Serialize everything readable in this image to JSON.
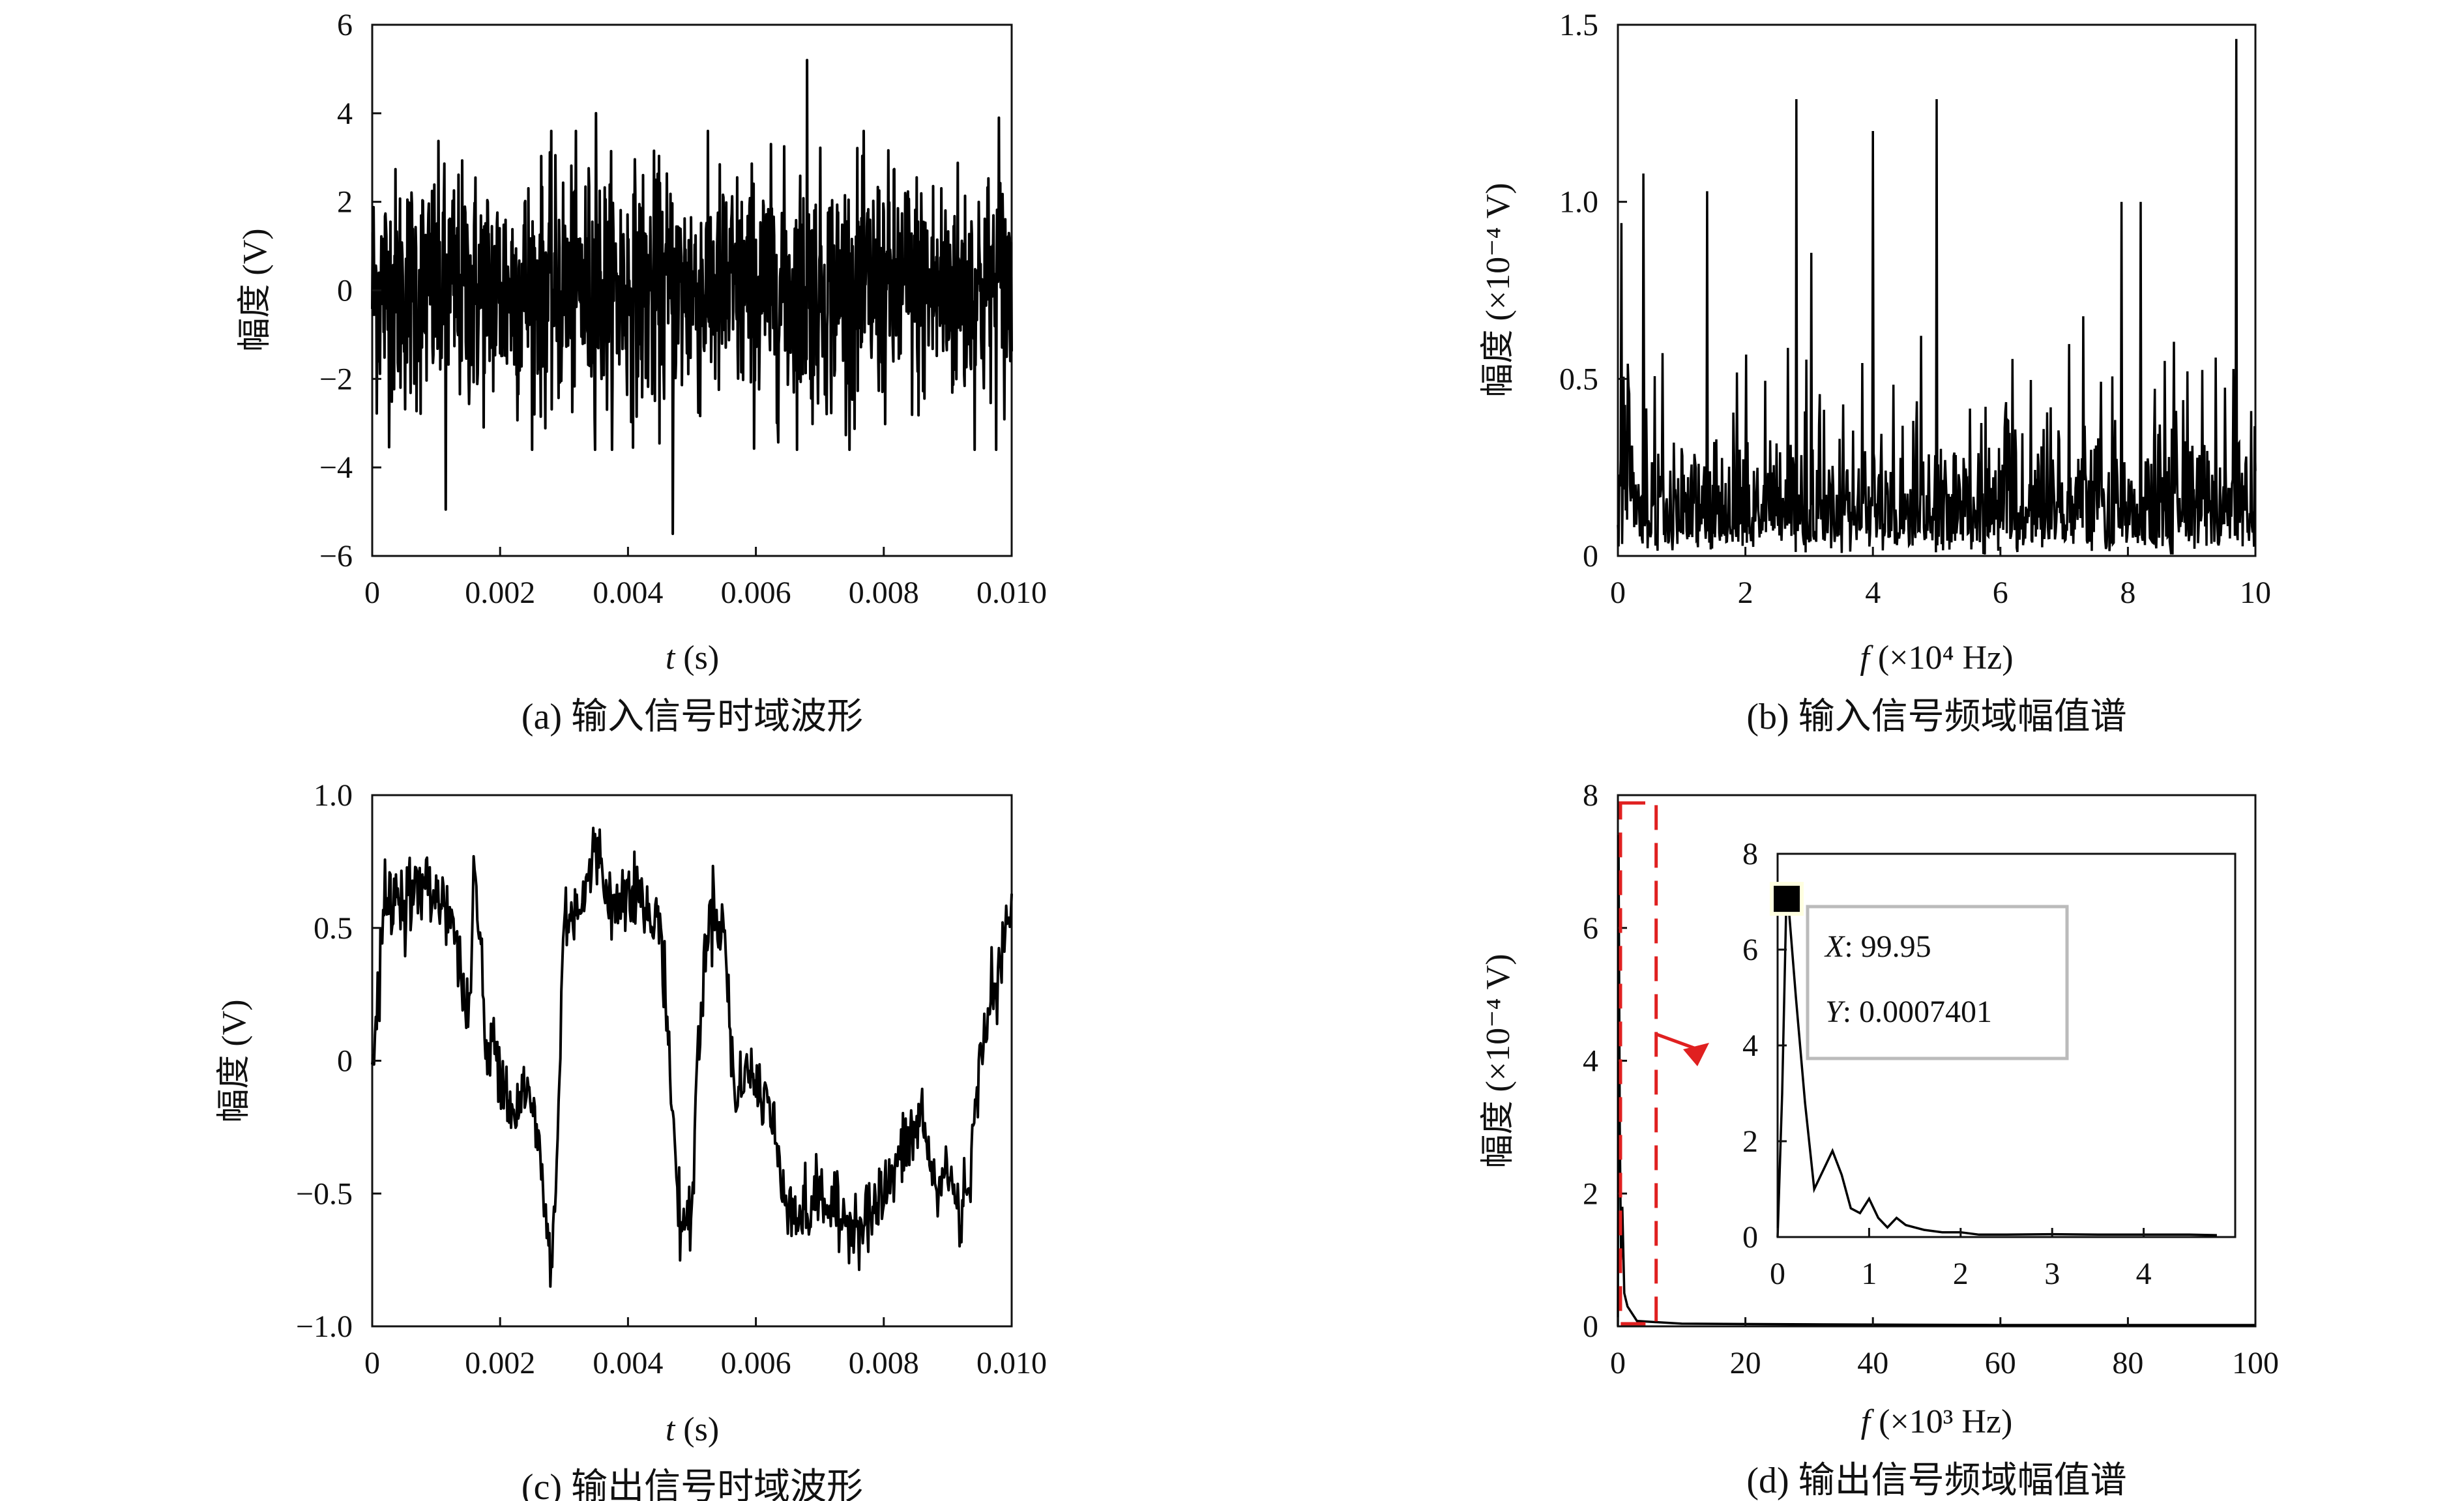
{
  "chart_data": [
    {
      "id": "a",
      "type": "line",
      "caption": "(a) 输入信号时域波形",
      "xlabel_italic": "t",
      "xlabel_unit": " (s)",
      "ylabel": "幅度 (V)",
      "xlim": [
        0,
        0.01
      ],
      "ylim": [
        -6,
        6
      ],
      "xticks": [
        0,
        0.002,
        0.004,
        0.006,
        0.008,
        0.01
      ],
      "xtick_labels": [
        "0",
        "0.002",
        "0.004",
        "0.006",
        "0.008",
        "0.010"
      ],
      "yticks": [
        -6,
        -4,
        -2,
        0,
        2,
        4,
        6
      ],
      "ytick_labels": [
        "−6",
        "−4",
        "−2",
        "0",
        "2",
        "4",
        "6"
      ],
      "series": [
        {
          "values_description_hint": "random noise",
          "amplitude_range": [
            -5.5,
            5.2
          ]
        }
      ]
    },
    {
      "id": "b",
      "type": "line",
      "caption": "(b) 输入信号频域幅值谱",
      "xlabel_italic": "f",
      "xlabel_unit": " (×10⁴ Hz)",
      "ylabel": "幅度 (×10⁻⁴ V)",
      "xlim": [
        0,
        10
      ],
      "ylim": [
        0,
        1.5
      ],
      "xticks": [
        0,
        2,
        4,
        6,
        8,
        10
      ],
      "xtick_labels": [
        "0",
        "2",
        "4",
        "6",
        "8",
        "10"
      ],
      "yticks": [
        0,
        0.5,
        1.0,
        1.5
      ],
      "ytick_labels": [
        "0",
        "0.5",
        "1.0",
        "1.5"
      ],
      "peaks": [
        [
          0.06,
          0.94
        ],
        [
          0.4,
          1.08
        ],
        [
          1.4,
          1.03
        ],
        [
          2.8,
          1.29
        ],
        [
          4.0,
          1.2
        ],
        [
          5.0,
          1.29
        ],
        [
          7.9,
          1.0
        ],
        [
          8.2,
          1.0
        ],
        [
          9.7,
          1.46
        ]
      ]
    },
    {
      "id": "c",
      "type": "line",
      "caption": "(c) 输出信号时域波形",
      "xlabel_italic": "t",
      "xlabel_unit": " (s)",
      "ylabel": "幅度 (V)",
      "xlim": [
        0,
        0.01
      ],
      "ylim": [
        -1,
        1
      ],
      "xticks": [
        0,
        0.002,
        0.004,
        0.006,
        0.008,
        0.01
      ],
      "xtick_labels": [
        "0",
        "0.002",
        "0.004",
        "0.006",
        "0.008",
        "0.010"
      ],
      "yticks": [
        -1,
        -0.5,
        0,
        0.5,
        1
      ],
      "ytick_labels": [
        "−1.0",
        "−0.5",
        "0",
        "0.5",
        "1.0"
      ],
      "envelope": [
        [
          0,
          -0.05
        ],
        [
          0.0002,
          0.6
        ],
        [
          0.0008,
          0.65
        ],
        [
          0.0012,
          0.6
        ],
        [
          0.0015,
          0.15
        ],
        [
          0.0016,
          0.7
        ],
        [
          0.0017,
          0.4
        ],
        [
          0.0018,
          -0.05
        ],
        [
          0.0019,
          0.1
        ],
        [
          0.0022,
          -0.2
        ],
        [
          0.0024,
          -0.1
        ],
        [
          0.0026,
          -0.3
        ],
        [
          0.0027,
          -0.55
        ],
        [
          0.0028,
          -0.8
        ],
        [
          0.0029,
          -0.3
        ],
        [
          0.003,
          0.55
        ],
        [
          0.0033,
          0.6
        ],
        [
          0.0035,
          0.8
        ],
        [
          0.0038,
          0.55
        ],
        [
          0.004,
          0.7
        ],
        [
          0.0044,
          0.5
        ],
        [
          0.0045,
          0.55
        ],
        [
          0.0046,
          0.2
        ],
        [
          0.0047,
          -0.2
        ],
        [
          0.0048,
          -0.6
        ],
        [
          0.005,
          -0.6
        ],
        [
          0.0051,
          0.1
        ],
        [
          0.0053,
          0.6
        ],
        [
          0.0055,
          0.5
        ],
        [
          0.0056,
          0.1
        ],
        [
          0.0057,
          -0.2
        ],
        [
          0.0058,
          0.0
        ],
        [
          0.006,
          -0.1
        ],
        [
          0.0062,
          -0.15
        ],
        [
          0.0064,
          -0.45
        ],
        [
          0.0067,
          -0.6
        ],
        [
          0.007,
          -0.5
        ],
        [
          0.0073,
          -0.6
        ],
        [
          0.0076,
          -0.6
        ],
        [
          0.0079,
          -0.55
        ],
        [
          0.0082,
          -0.4
        ],
        [
          0.0084,
          -0.3
        ],
        [
          0.0086,
          -0.2
        ],
        [
          0.0088,
          -0.5
        ],
        [
          0.009,
          -0.4
        ],
        [
          0.0092,
          -0.6
        ],
        [
          0.0094,
          -0.3
        ],
        [
          0.0096,
          0.2
        ],
        [
          0.0098,
          0.3
        ],
        [
          0.01,
          0.6
        ]
      ]
    },
    {
      "id": "d",
      "type": "line",
      "caption": "(d) 输出信号频域幅值谱",
      "xlabel_italic": "f",
      "xlabel_unit": " (×10³ Hz)",
      "ylabel": "幅度 (×10⁻⁴ V)",
      "xlim": [
        0,
        100
      ],
      "ylim": [
        0,
        8
      ],
      "xticks": [
        0,
        20,
        40,
        60,
        80,
        100
      ],
      "xtick_labels": [
        "0",
        "20",
        "40",
        "60",
        "80",
        "100"
      ],
      "yticks": [
        0,
        2,
        4,
        6,
        8
      ],
      "ytick_labels": [
        "0",
        "2",
        "4",
        "6",
        "8"
      ],
      "main_series": [
        [
          0,
          0
        ],
        [
          0.1,
          7.4
        ],
        [
          0.3,
          3.0
        ],
        [
          0.5,
          1.0
        ],
        [
          0.7,
          1.8
        ],
        [
          1.0,
          0.5
        ],
        [
          1.5,
          0.3
        ],
        [
          3,
          0.08
        ],
        [
          10,
          0.04
        ],
        [
          30,
          0.03
        ],
        [
          60,
          0.02
        ],
        [
          100,
          0.02
        ]
      ],
      "inset": {
        "xlim": [
          0,
          5
        ],
        "ylim": [
          0,
          8
        ],
        "xticks": [
          0,
          1,
          2,
          3,
          4
        ],
        "xtick_labels": [
          "0",
          "1",
          "2",
          "3",
          "4"
        ],
        "yticks": [
          0,
          2,
          4,
          6,
          8
        ],
        "ytick_labels": [
          "0",
          "2",
          "4",
          "6",
          "8"
        ],
        "series": [
          [
            0,
            0
          ],
          [
            0.05,
            3.0
          ],
          [
            0.1,
            7.4
          ],
          [
            0.2,
            5.0
          ],
          [
            0.3,
            2.8
          ],
          [
            0.4,
            1.0
          ],
          [
            0.5,
            1.4
          ],
          [
            0.6,
            1.8
          ],
          [
            0.7,
            1.3
          ],
          [
            0.8,
            0.6
          ],
          [
            0.9,
            0.5
          ],
          [
            1.0,
            0.8
          ],
          [
            1.1,
            0.4
          ],
          [
            1.2,
            0.2
          ],
          [
            1.3,
            0.4
          ],
          [
            1.4,
            0.25
          ],
          [
            1.5,
            0.2
          ],
          [
            1.6,
            0.15
          ],
          [
            1.8,
            0.1
          ],
          [
            2.0,
            0.1
          ],
          [
            2.2,
            0.05
          ],
          [
            2.5,
            0.05
          ],
          [
            3.0,
            0.06
          ],
          [
            3.5,
            0.05
          ],
          [
            4.0,
            0.05
          ],
          [
            4.5,
            0.05
          ],
          [
            4.8,
            0.04
          ]
        ],
        "datatip_x_label": "X",
        "datatip_x_value": ": 99.95",
        "datatip_y_label": "Y",
        "datatip_y_value": ": 0.0007401",
        "datatip_x": 0.1,
        "datatip_y": 7.4
      },
      "zoom_region": {
        "x": [
          0,
          6
        ],
        "y": [
          0,
          8
        ]
      }
    }
  ],
  "colors": {
    "line": "#000000",
    "zoom_box": "#e02020",
    "arrow": "#e02020",
    "datatip_border": "#bbbbbb"
  }
}
